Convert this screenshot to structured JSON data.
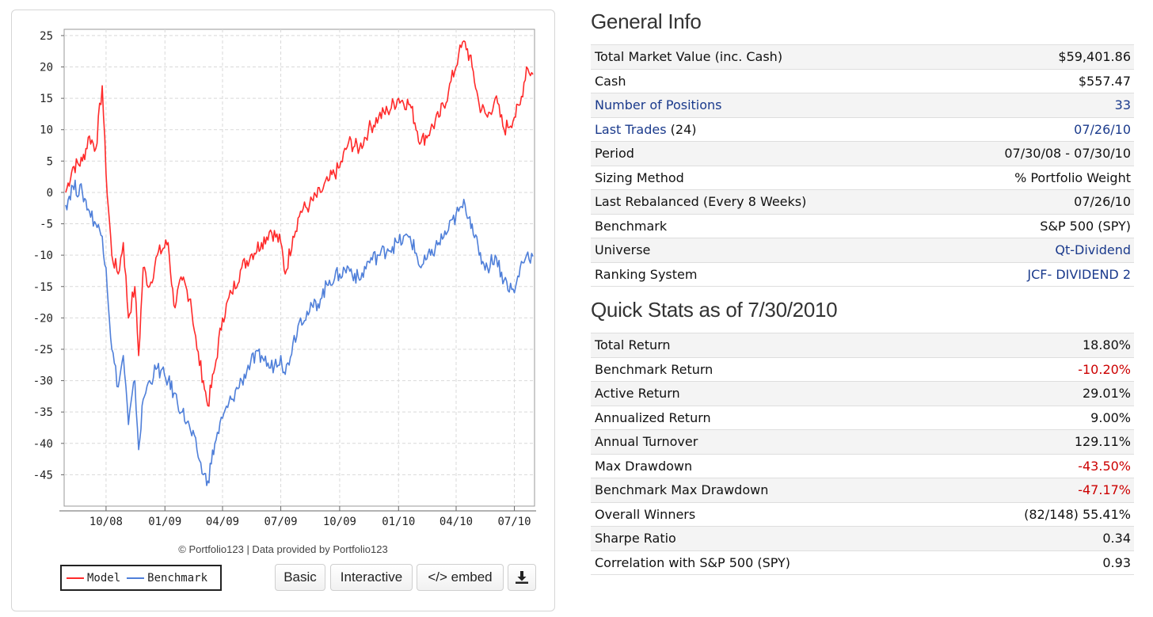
{
  "chart": {
    "credit": "© Portfolio123 | Data provided by Portfolio123",
    "legend": {
      "model_label": "Model",
      "benchmark_label": "Benchmark"
    },
    "colors": {
      "model": "#ff2a2a",
      "benchmark": "#4f7fd9"
    },
    "buttons": {
      "basic": "Basic",
      "interactive": "Interactive",
      "embed": "</> embed",
      "download_icon": "download-icon"
    }
  },
  "chart_data": {
    "type": "line",
    "x_tick_labels": [
      "10/08",
      "01/09",
      "04/09",
      "07/09",
      "10/09",
      "01/10",
      "04/10",
      "07/10"
    ],
    "y_tick_labels": [
      "25",
      "20",
      "15",
      "10",
      "5",
      "0",
      "-5",
      "-10",
      "-15",
      "-20",
      "-25",
      "-30",
      "-35",
      "-40",
      "-45"
    ],
    "ylim": [
      -50,
      26
    ],
    "grid": true,
    "legend_position": "bottom-left",
    "series": [
      {
        "name": "Model",
        "color": "#ff2a2a",
        "x": [
          "2008-07-30",
          "2008-08-10",
          "2008-08-25",
          "2008-09-05",
          "2008-09-15",
          "2008-09-25",
          "2008-10-01",
          "2008-10-10",
          "2008-10-20",
          "2008-10-28",
          "2008-11-05",
          "2008-11-15",
          "2008-11-21",
          "2008-11-28",
          "2008-12-08",
          "2008-12-20",
          "2009-01-06",
          "2009-01-15",
          "2009-01-28",
          "2009-02-10",
          "2009-02-20",
          "2009-03-02",
          "2009-03-09",
          "2009-03-20",
          "2009-04-01",
          "2009-04-15",
          "2009-05-01",
          "2009-05-15",
          "2009-06-01",
          "2009-06-15",
          "2009-07-01",
          "2009-07-08",
          "2009-07-20",
          "2009-08-01",
          "2009-08-15",
          "2009-09-01",
          "2009-09-15",
          "2009-10-01",
          "2009-10-15",
          "2009-11-01",
          "2009-11-15",
          "2009-12-01",
          "2009-12-15",
          "2010-01-01",
          "2010-01-19",
          "2010-02-05",
          "2010-02-20",
          "2010-03-05",
          "2010-03-20",
          "2010-04-05",
          "2010-04-15",
          "2010-04-26",
          "2010-05-07",
          "2010-05-20",
          "2010-06-01",
          "2010-06-15",
          "2010-07-01",
          "2010-07-10",
          "2010-07-20",
          "2010-07-30"
        ],
        "y": [
          0,
          4,
          5,
          9,
          7,
          17,
          3,
          -10,
          -13,
          -8,
          -20,
          -15,
          -26,
          -12,
          -15,
          -10,
          -8,
          -18,
          -14,
          -17,
          -25,
          -30,
          -34,
          -28,
          -20,
          -16,
          -12,
          -10,
          -8,
          -6,
          -8,
          -13,
          -7,
          -3,
          -2,
          0,
          2,
          4,
          8,
          7,
          10,
          12,
          13,
          15,
          14,
          8,
          10,
          12,
          16,
          22,
          24,
          20,
          14,
          12,
          15,
          10,
          12,
          14,
          20,
          18.8
        ]
      },
      {
        "name": "Benchmark",
        "color": "#4f7fd9",
        "x": [
          "2008-07-30",
          "2008-08-10",
          "2008-08-25",
          "2008-09-05",
          "2008-09-15",
          "2008-09-25",
          "2008-10-01",
          "2008-10-10",
          "2008-10-20",
          "2008-10-28",
          "2008-11-05",
          "2008-11-15",
          "2008-11-21",
          "2008-11-28",
          "2008-12-08",
          "2008-12-20",
          "2009-01-06",
          "2009-01-15",
          "2009-01-28",
          "2009-02-10",
          "2009-02-20",
          "2009-03-02",
          "2009-03-09",
          "2009-03-20",
          "2009-04-01",
          "2009-04-15",
          "2009-05-01",
          "2009-05-15",
          "2009-06-01",
          "2009-06-15",
          "2009-07-01",
          "2009-07-08",
          "2009-07-20",
          "2009-08-01",
          "2009-08-15",
          "2009-09-01",
          "2009-09-15",
          "2009-10-01",
          "2009-10-15",
          "2009-11-01",
          "2009-11-15",
          "2009-12-01",
          "2009-12-15",
          "2010-01-01",
          "2010-01-19",
          "2010-02-05",
          "2010-02-20",
          "2010-03-05",
          "2010-03-20",
          "2010-04-05",
          "2010-04-15",
          "2010-04-26",
          "2010-05-07",
          "2010-05-20",
          "2010-06-01",
          "2010-06-15",
          "2010-07-01",
          "2010-07-10",
          "2010-07-20",
          "2010-07-30"
        ],
        "y": [
          -2,
          1,
          0,
          -3,
          -5,
          -7,
          -12,
          -25,
          -31,
          -26,
          -37,
          -30,
          -41,
          -33,
          -30,
          -28,
          -30,
          -32,
          -35,
          -38,
          -41,
          -45,
          -46,
          -40,
          -36,
          -33,
          -30,
          -27,
          -26,
          -28,
          -26,
          -29,
          -24,
          -20,
          -19,
          -17,
          -14,
          -13,
          -12,
          -14,
          -11,
          -10,
          -9,
          -8,
          -7,
          -12,
          -10,
          -8,
          -6,
          -3,
          -2,
          -5,
          -10,
          -12,
          -10,
          -14,
          -16,
          -12,
          -10,
          -10.2
        ]
      }
    ]
  },
  "general_info": {
    "title": "General Info",
    "rows": [
      {
        "label": "Total Market Value (inc. Cash)",
        "value": "$59,401.86"
      },
      {
        "label": "Cash",
        "value": "$557.47"
      },
      {
        "label": "Number of Positions",
        "value": "33"
      },
      {
        "label": "Last Trades",
        "label_suffix": " (24)",
        "value": "07/26/10"
      },
      {
        "label": "Period",
        "value": "07/30/08 - 07/30/10"
      },
      {
        "label": "Sizing Method",
        "value": "% Portfolio Weight"
      },
      {
        "label": "Last Rebalanced (Every 8 Weeks)",
        "value": "07/26/10"
      },
      {
        "label": "Benchmark",
        "value": "S&P 500 (SPY)"
      },
      {
        "label": "Universe",
        "value": "Qt-Dividend"
      },
      {
        "label": "Ranking System",
        "value": "JCF- DIVIDEND 2"
      }
    ]
  },
  "quick_stats": {
    "title": "Quick Stats as of 7/30/2010",
    "rows": [
      {
        "label": "Total Return",
        "value": "18.80%"
      },
      {
        "label": "Benchmark Return",
        "value": "-10.20%"
      },
      {
        "label": "Active Return",
        "value": "29.01%"
      },
      {
        "label": "Annualized Return",
        "value": "9.00%"
      },
      {
        "label": "Annual Turnover",
        "value": "129.11%"
      },
      {
        "label": "Max Drawdown",
        "value": "-43.50%"
      },
      {
        "label": "Benchmark Max Drawdown",
        "value": "-47.17%"
      },
      {
        "label": "Overall Winners",
        "value": "(82/148) 55.41%"
      },
      {
        "label": "Sharpe Ratio",
        "value": "0.34"
      },
      {
        "label": "Correlation with S&P 500 (SPY)",
        "value": "0.93"
      }
    ]
  },
  "colors": {
    "link": "#1a3a8c",
    "negative": "#cc0000"
  }
}
